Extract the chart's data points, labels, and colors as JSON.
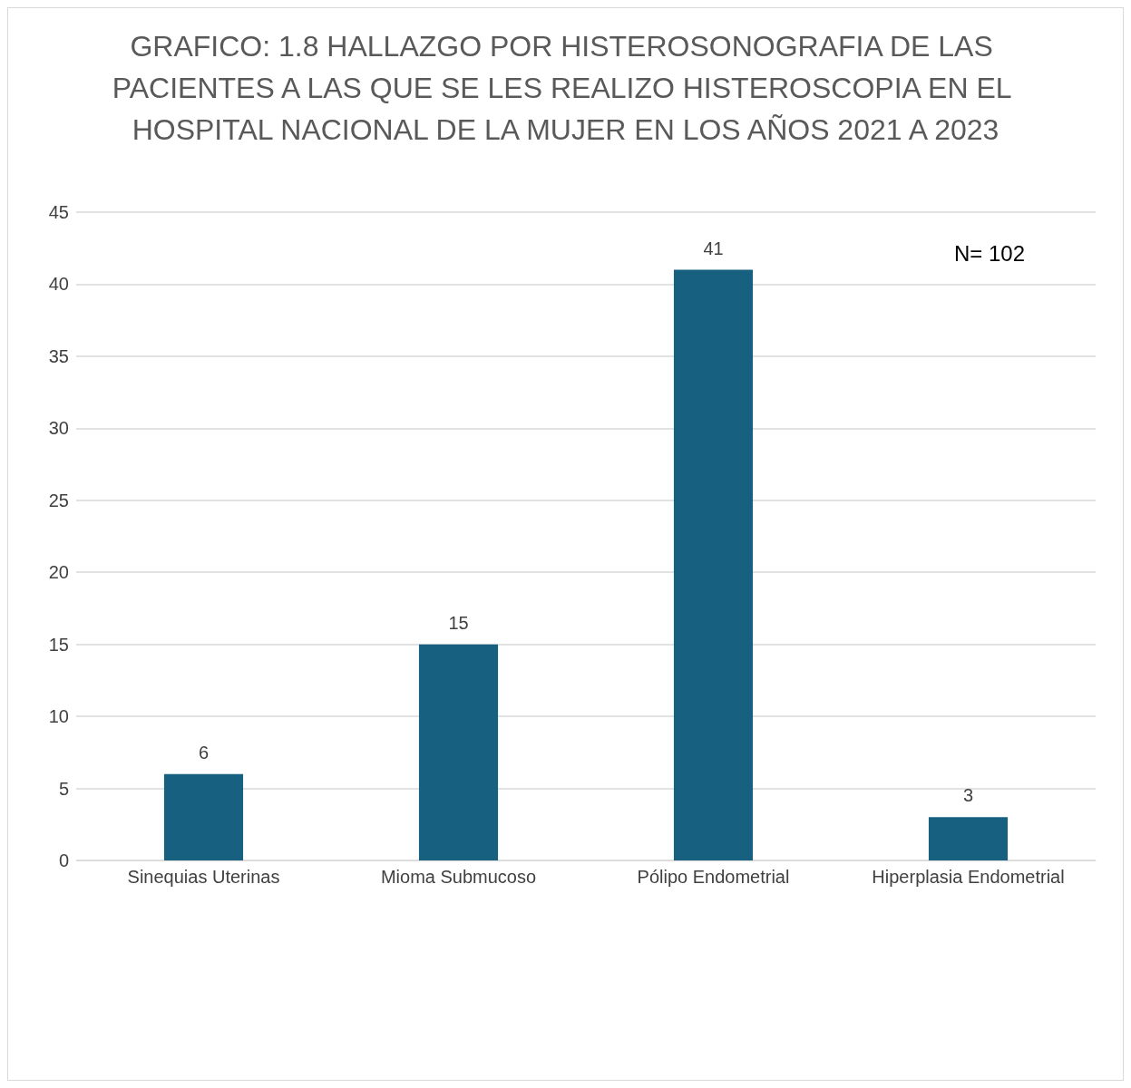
{
  "chart_data": {
    "type": "bar",
    "title": "GRAFICO: 1.8 HALLAZGO POR HISTEROSONOGRAFIA DE LAS PACIENTES A LAS QUE SE LES REALIZO HISTEROSCOPIA EN EL HOSPITAL NACIONAL DE LA MUJER EN LOS AÑOS 2021 A 2023",
    "categories": [
      "Sinequias Uterinas",
      "Mioma Submucoso",
      "Pólipo Endometrial",
      "Hiperplasia Endometrial"
    ],
    "values": [
      6,
      15,
      41,
      3
    ],
    "color": "#17607f",
    "ylim": [
      0,
      45
    ],
    "yticks": [
      0,
      5,
      10,
      15,
      20,
      25,
      30,
      35,
      40,
      45
    ],
    "grid": "y",
    "data_labels": true,
    "annotations": [
      "N= 102"
    ]
  }
}
